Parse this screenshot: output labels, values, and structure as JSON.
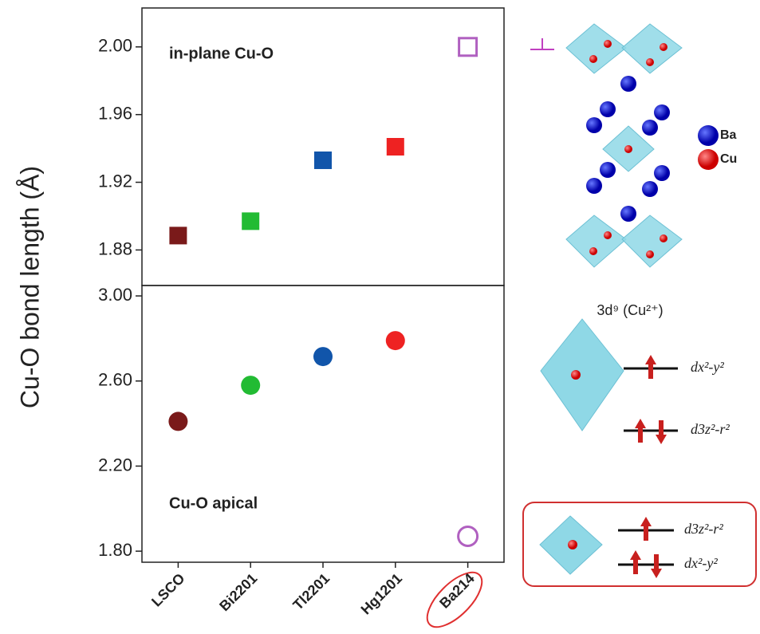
{
  "chart_data": [
    {
      "type": "scatter",
      "marker": "square",
      "annotation": "in-plane Cu-O",
      "ylabel": "Cu-O bond length (Å)",
      "values": [
        1.8885,
        1.897,
        1.933,
        1.941,
        2.0
      ],
      "colors": [
        "#7a1a1a",
        "#22bb33",
        "#1155aa",
        "#ee2222",
        "#b060c0"
      ],
      "hollow": [
        false,
        false,
        false,
        false,
        true
      ],
      "ylim": [
        1.859,
        2.023
      ],
      "yticks": [
        {
          "value": 1.88,
          "label": "1.88"
        },
        {
          "value": 1.92,
          "label": "1.92"
        },
        {
          "value": 1.96,
          "label": "1.96"
        },
        {
          "value": 2.0,
          "label": "2.00"
        }
      ]
    },
    {
      "type": "scatter",
      "marker": "circle",
      "annotation": "Cu-O apical",
      "categories": [
        "LSCO",
        "Bi2201",
        "Tl2201",
        "Hg1201",
        "Ba214"
      ],
      "values": [
        2.41,
        2.58,
        2.715,
        2.79,
        1.87
      ],
      "colors": [
        "#7a1a1a",
        "#22bb33",
        "#1155aa",
        "#ee2222",
        "#b060c0"
      ],
      "hollow": [
        false,
        false,
        false,
        false,
        true
      ],
      "ylim": [
        1.748,
        3.049
      ],
      "yticks": [
        {
          "value": 1.8,
          "label": "1.80"
        },
        {
          "value": 2.2,
          "label": "2.20"
        },
        {
          "value": 2.6,
          "label": "2.60"
        },
        {
          "value": 3.0,
          "label": "3.00"
        }
      ]
    }
  ],
  "diagram": {
    "legend": [
      "Ba",
      "Cu"
    ],
    "config": "3d⁹ (Cu²⁺)",
    "octahedral": [
      "dx²-y²",
      "d3z²-r²"
    ],
    "square": [
      "d3z²-r²",
      "dx²-y²"
    ]
  }
}
